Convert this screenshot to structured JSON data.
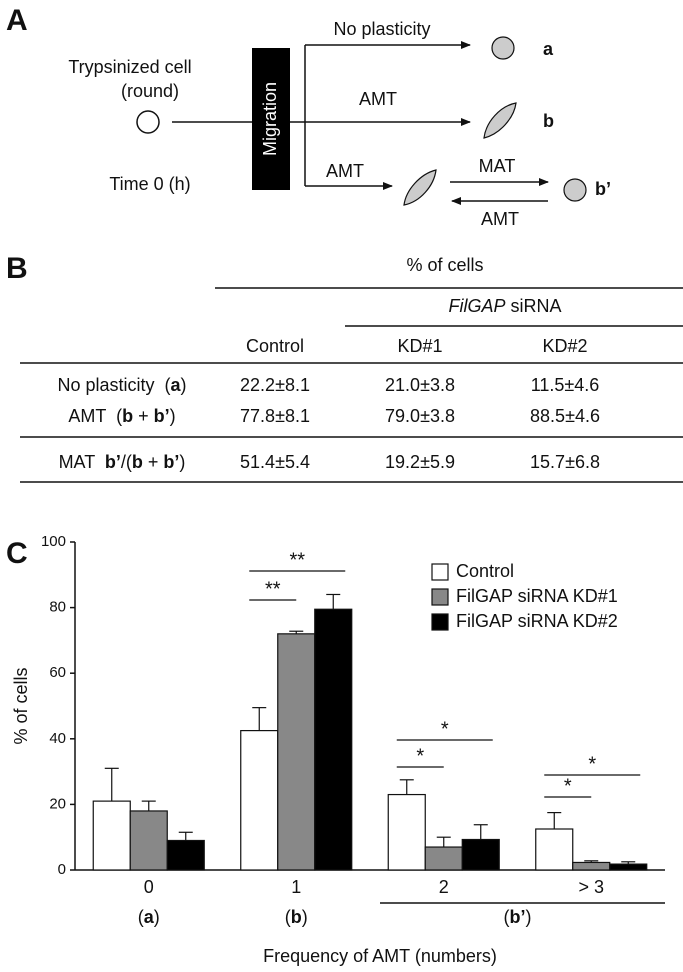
{
  "panel_a": {
    "label": "A",
    "cell_label": [
      "Trypsinized cell",
      "(round)"
    ],
    "time": "Time 0 (h)",
    "migration": "Migration",
    "arrows": [
      "No plasticity",
      "AMT",
      "AMT",
      "MAT",
      "AMT"
    ],
    "outcomes": [
      "a",
      "b",
      "b’"
    ]
  },
  "panel_b": {
    "label": "B",
    "header": "% of cells",
    "subheader": [
      "FilGAP",
      " siRNA"
    ],
    "columns": [
      "Control",
      "KD#1",
      "KD#2"
    ],
    "rows": [
      {
        "label": [
          "No plasticity  (",
          "a",
          ")"
        ],
        "cells": [
          "22.2±8.1",
          "21.0±3.8",
          "11.5±4.6"
        ]
      },
      {
        "label": [
          "AMT  (",
          "b",
          " + ",
          "b’",
          ")"
        ],
        "cells": [
          "77.8±8.1",
          "79.0±3.8",
          "88.5±4.6"
        ]
      },
      {
        "label": [
          "MAT  ",
          "b’",
          "/(",
          "b",
          " + ",
          "b’",
          ")"
        ],
        "cells": [
          "51.4±5.4",
          "19.2±5.9",
          "15.7±6.8"
        ]
      }
    ]
  },
  "panel_c_label": "C",
  "chart_data": {
    "type": "bar",
    "categories": [
      "0",
      "1",
      "2",
      "> 3"
    ],
    "group_labels": [
      [
        "(",
        "a",
        ")"
      ],
      [
        "(",
        "b",
        ")"
      ],
      [
        "(",
        "b’",
        ")"
      ]
    ],
    "series": [
      {
        "name": "Control",
        "color": "#ffffff",
        "values": [
          21,
          42.5,
          23,
          12.5
        ],
        "errors": [
          10,
          7,
          4.5,
          5
        ]
      },
      {
        "name": "FilGAP siRNA KD#1",
        "color": "#888888",
        "values": [
          18,
          72,
          7,
          2.3
        ],
        "errors": [
          3,
          0.8,
          3,
          0.5
        ]
      },
      {
        "name": "FilGAP siRNA KD#2",
        "color": "#000000",
        "values": [
          9,
          79.5,
          9.3,
          1.8
        ],
        "errors": [
          2.5,
          4.5,
          4.5,
          0.7
        ]
      }
    ],
    "ylim": [
      0,
      100
    ],
    "yticks": [
      0,
      20,
      40,
      60,
      80,
      100
    ],
    "ylabel": "% of cells",
    "xlabel": "Frequency of AMT (numbers)",
    "annotations": [
      "**",
      "**",
      "*",
      "*",
      "*",
      "*"
    ],
    "legend": "upper right"
  }
}
